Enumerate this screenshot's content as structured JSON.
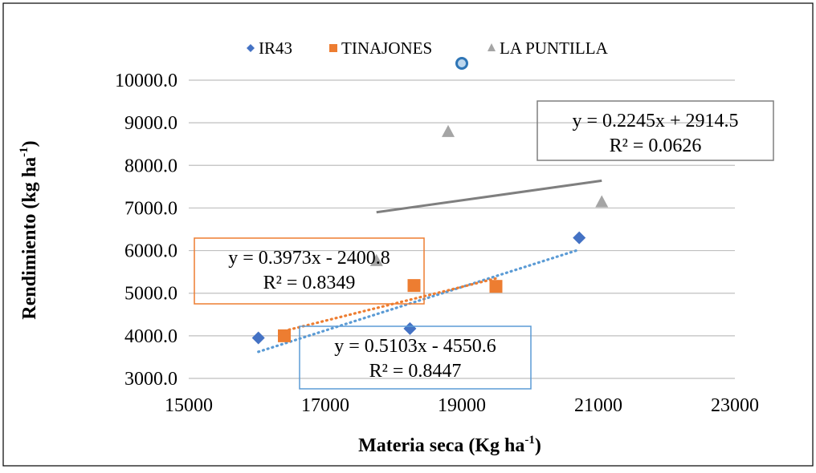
{
  "chart_data": {
    "type": "scatter",
    "xlabel": "Materia seca (Kg ha",
    "xlabel_sup": "-1",
    "xlabel_tail": ")",
    "ylabel": "Rendimiento  (kg  ha",
    "ylabel_sup": "-1",
    "ylabel_tail": ")",
    "xlim": [
      15000,
      23000
    ],
    "ylim": [
      3000,
      10000
    ],
    "xticks": [
      15000,
      17000,
      19000,
      21000,
      23000
    ],
    "xtick_labels": [
      "15000",
      "17000",
      "19000",
      "21000",
      "23000"
    ],
    "yticks": [
      3000,
      4000,
      5000,
      6000,
      7000,
      8000,
      9000,
      10000
    ],
    "ytick_labels": [
      "3000.0",
      "4000.0",
      "5000.0",
      "6000.0",
      "7000.0",
      "8000.0",
      "9000.0",
      "10000.0"
    ],
    "grid": "horizontal",
    "legend_position": "top",
    "series": [
      {
        "name": "IR43",
        "marker": "diamond",
        "color": "#4472C4",
        "points": [
          [
            16020,
            3950
          ],
          [
            18240,
            4170
          ],
          [
            20720,
            6300
          ]
        ],
        "trendline": {
          "style": "dotted",
          "color": "#5B9BD5",
          "slope": 0.5103,
          "intercept": -4550.6,
          "x_range": [
            16020,
            20720
          ],
          "equation": "y = 0.5103x - 4550.6",
          "r2": "R² = 0.8447",
          "box_color": "#5B9BD5"
        }
      },
      {
        "name": "TINAJONES",
        "marker": "square",
        "color": "#ED7D31",
        "points": [
          [
            16400,
            4000
          ],
          [
            18300,
            5180
          ],
          [
            19500,
            5160
          ]
        ],
        "trendline": {
          "style": "dotted",
          "color": "#ED7D31",
          "slope": 0.3973,
          "intercept": -2400.8,
          "x_range": [
            16400,
            19500
          ],
          "equation": "y = 0.3973x - 2400.8",
          "r2": "R² = 0.8349",
          "box_color": "#ED7D31"
        }
      },
      {
        "name": "LA PUNTILLA",
        "marker": "triangle",
        "color": "#A5A5A5",
        "points": [
          [
            17750,
            5750
          ],
          [
            18800,
            8780
          ],
          [
            21050,
            7130
          ]
        ],
        "trendline": {
          "style": "solid",
          "color": "#7F7F7F",
          "slope": 0.2245,
          "intercept": 2914.5,
          "x_range": [
            17750,
            21050
          ],
          "equation": "y = 0.2245x + 2914.5",
          "r2": "R² = 0.0626",
          "box_color": "#7F7F7F"
        }
      }
    ]
  }
}
